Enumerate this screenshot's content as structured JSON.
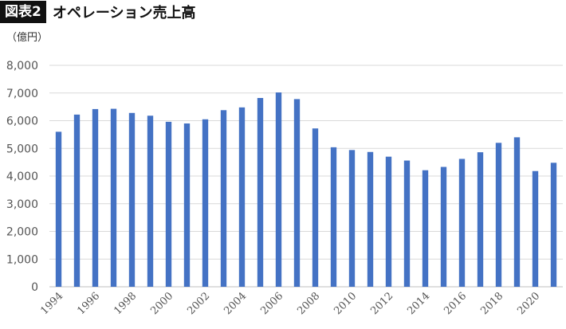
{
  "header": {
    "badge": "図表2",
    "title": "オペレーション売上高"
  },
  "chart_data": {
    "type": "bar",
    "title": "オペレーション売上高",
    "unit": "（億円）",
    "categories": [
      "1994",
      "1995",
      "1996",
      "1997",
      "1998",
      "1999",
      "2000",
      "2001",
      "2002",
      "2003",
      "2004",
      "2005",
      "2006",
      "2007",
      "2008",
      "2009",
      "2010",
      "2011",
      "2012",
      "2013",
      "2014",
      "2015",
      "2016",
      "2017",
      "2018",
      "2019",
      "2020",
      "2021"
    ],
    "x_tick_labels": [
      "1994",
      "1996",
      "1998",
      "2000",
      "2002",
      "2004",
      "2006",
      "2008",
      "2010",
      "2012",
      "2014",
      "2016",
      "2018",
      "2020"
    ],
    "values": [
      5600,
      6220,
      6420,
      6430,
      6280,
      6180,
      5960,
      5900,
      6050,
      6380,
      6480,
      6820,
      7020,
      6780,
      5720,
      5040,
      4940,
      4870,
      4700,
      4560,
      4210,
      4330,
      4620,
      4860,
      5200,
      5400,
      4180,
      4480
    ],
    "ylim": [
      0,
      8000
    ],
    "y_ticks": [
      0,
      1000,
      2000,
      3000,
      4000,
      5000,
      6000,
      7000,
      8000
    ],
    "y_tick_labels": [
      "0",
      "1,000",
      "2,000",
      "3,000",
      "4,000",
      "5,000",
      "6,000",
      "7,000",
      "8,000"
    ],
    "grid": true,
    "legend": "none",
    "colors": {
      "bar": "#4472C4",
      "grid": "#d9d9d9",
      "axis": "#bfbfbf"
    }
  }
}
